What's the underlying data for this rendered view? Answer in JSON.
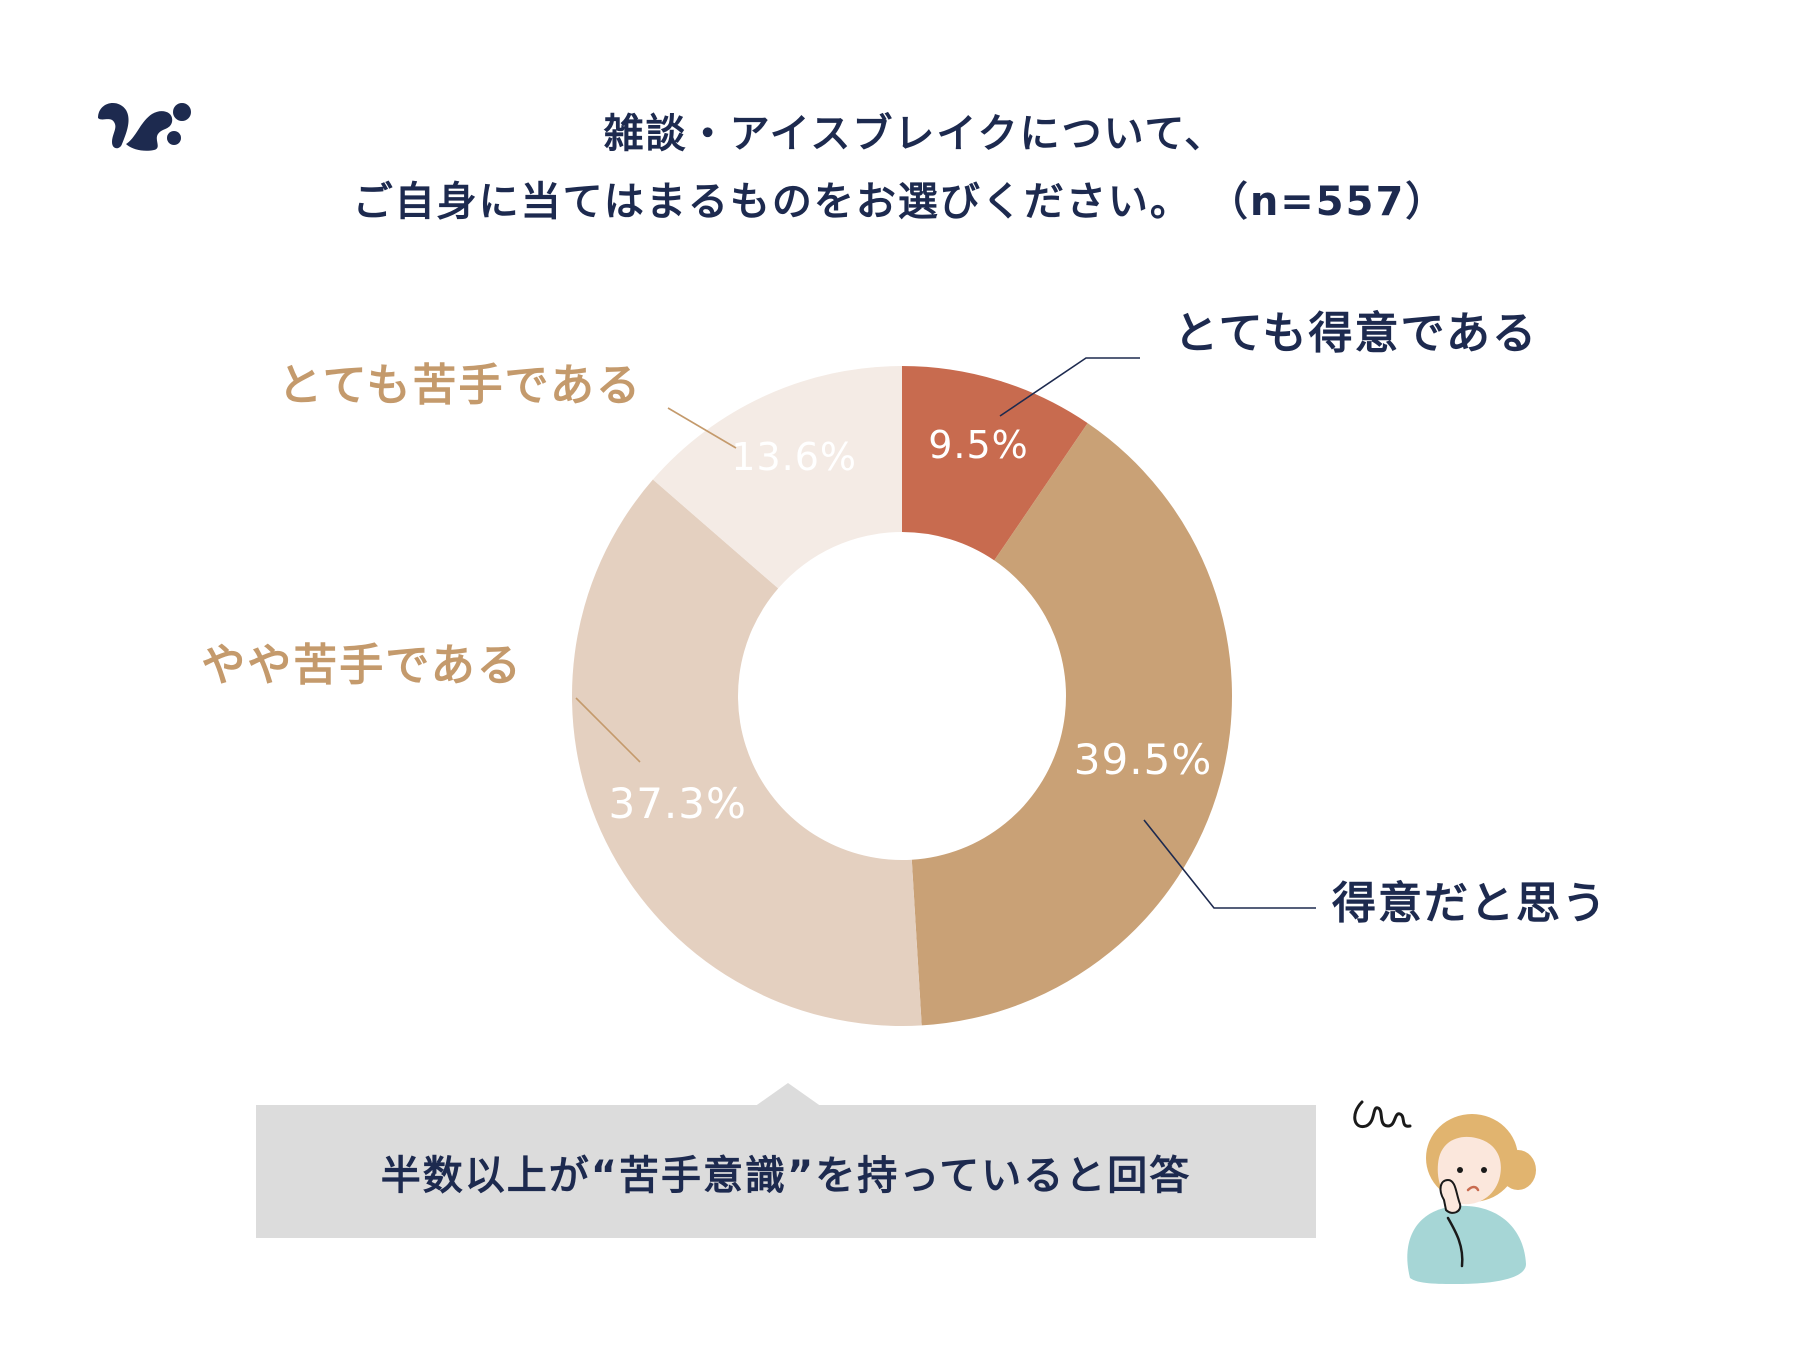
{
  "title": {
    "line1": "雑談・アイスブレイクについて、",
    "line2": "ご自身に当てはまるものをお選びください。 （n=557）"
  },
  "chart_data": {
    "type": "pie",
    "variant": "donut",
    "categories": [
      "とても得意である",
      "得意だと思う",
      "やや苦手である",
      "とても苦手である"
    ],
    "values": [
      9.5,
      39.5,
      37.3,
      13.6
    ],
    "value_labels": [
      "9.5%",
      "39.5%",
      "37.3%",
      "13.6%"
    ],
    "colors": [
      "#c86b4f",
      "#c9a176",
      "#e4d0c0",
      "#f4ebe5"
    ],
    "label_colors": [
      "#1d2a4f",
      "#1d2a4f",
      "#c49a6c",
      "#c49a6c"
    ],
    "leader_colors": [
      "#1d2a4f",
      "#1d2a4f",
      "#c49a6c",
      "#c49a6c"
    ],
    "start": "top",
    "direction": "clockwise"
  },
  "callout": {
    "text": "半数以上が“苦手意識”を持っていると回答"
  },
  "icons": {
    "logo": "brand-logo-icon",
    "illustration": "thinking-woman-illustration"
  }
}
